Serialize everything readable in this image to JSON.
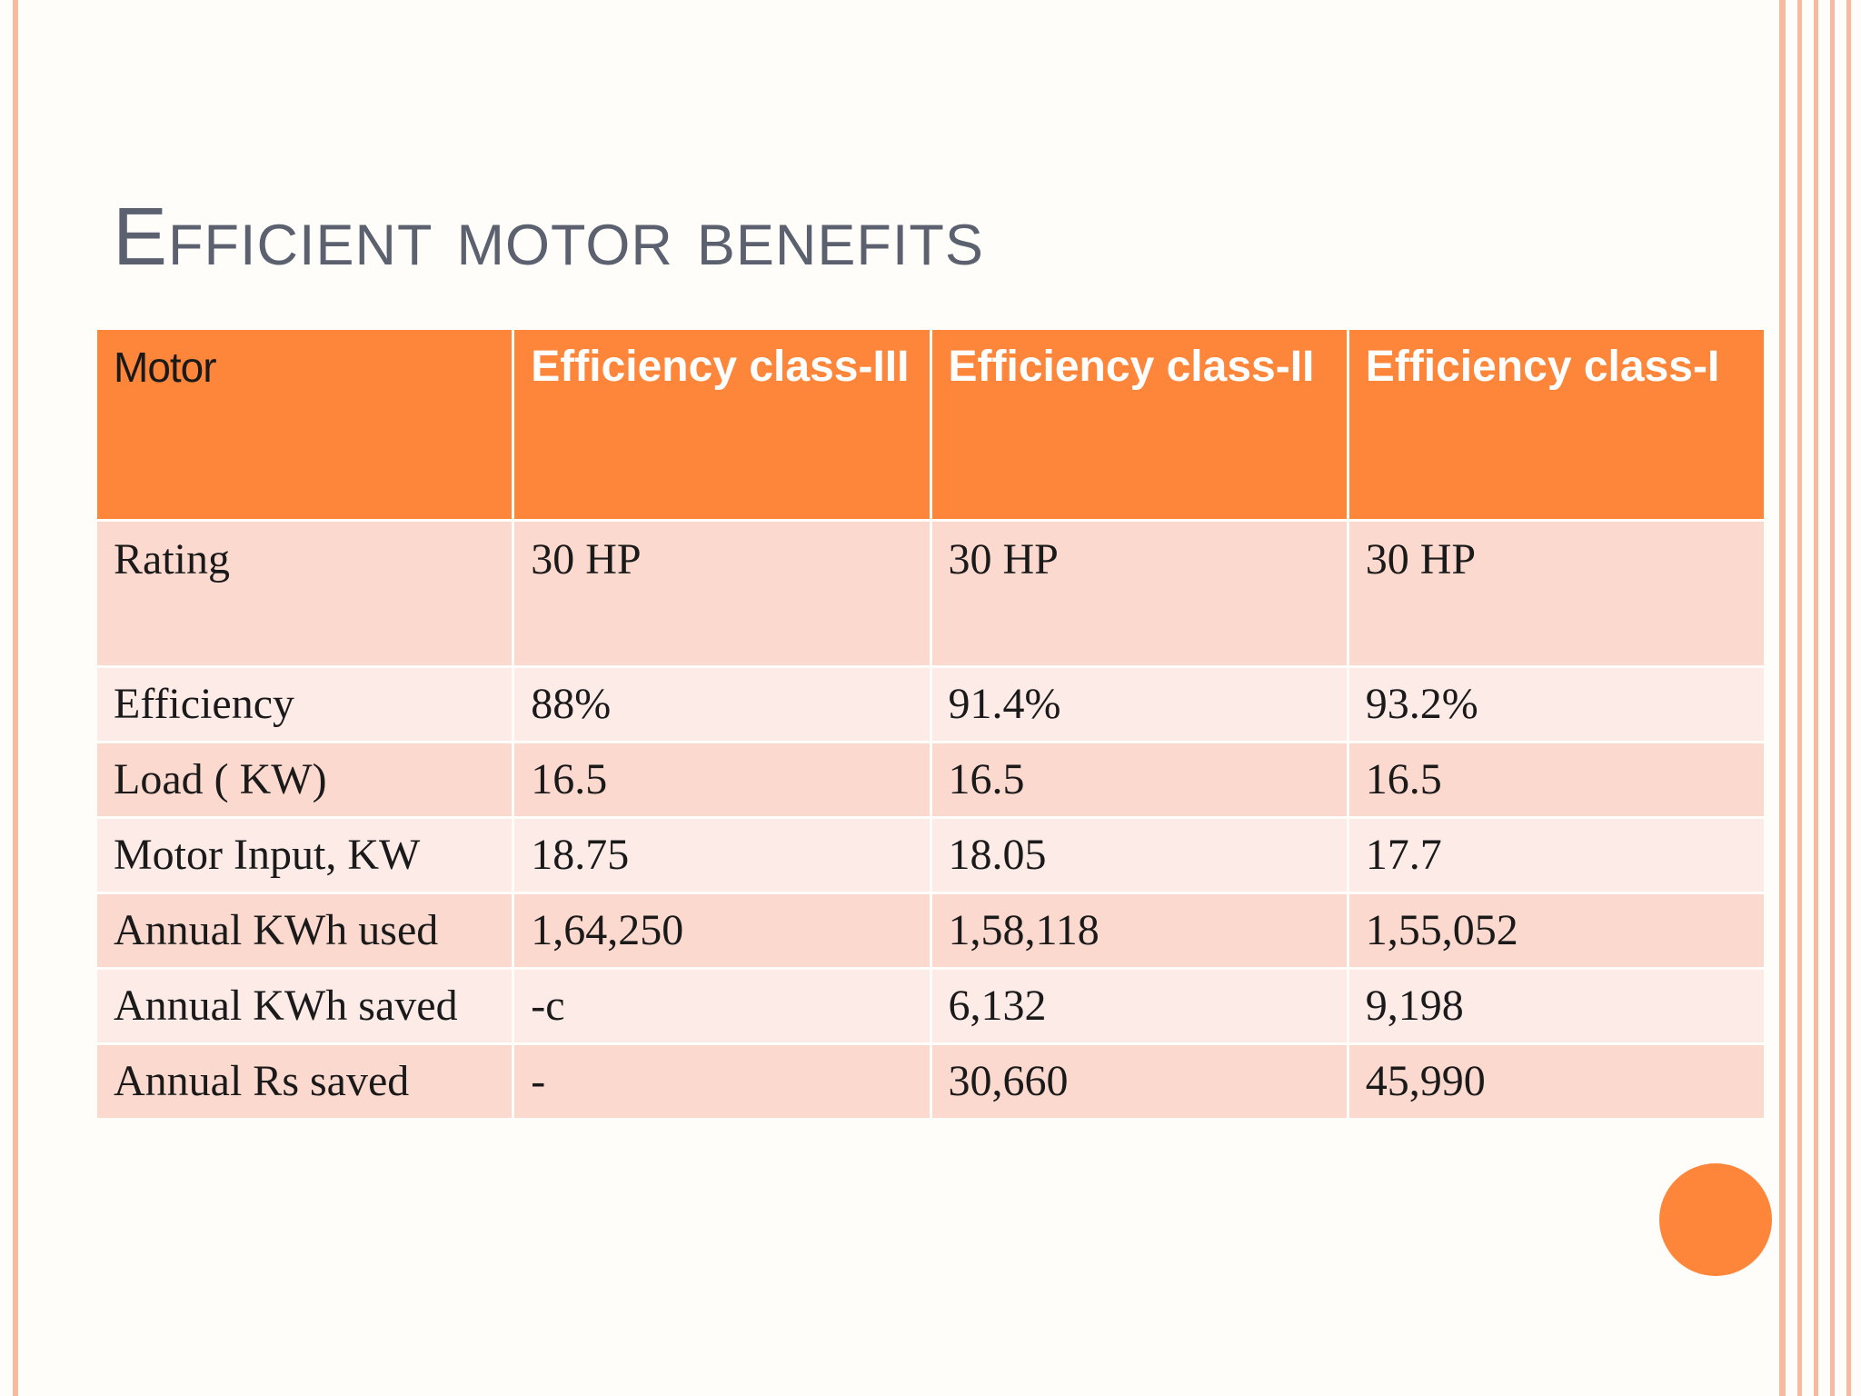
{
  "slide": {
    "title": "Efficient motor benefits"
  },
  "table": {
    "headers": [
      "Motor",
      "Efficiency class-III",
      "Efficiency class-II",
      "Efficiency class-I"
    ],
    "rows": [
      [
        "Rating",
        "30 HP",
        "30 HP",
        "30 HP"
      ],
      [
        "Efficiency",
        "88%",
        "91.4%",
        "93.2%"
      ],
      [
        "Load ( KW)",
        "16.5",
        "16.5",
        "16.5"
      ],
      [
        "Motor Input, KW",
        "18.75",
        "18.05",
        "17.7"
      ],
      [
        "Annual KWh used",
        "1,64,250",
        "1,58,118",
        "1,55,052"
      ],
      [
        "Annual KWh saved",
        "-c",
        "6,132",
        "9,198"
      ],
      [
        "Annual Rs saved",
        "-",
        "30,660",
        "45,990"
      ]
    ]
  },
  "colors": {
    "accent": "#fd863a",
    "row_dark": "#fcd9cf",
    "row_light": "#fdebe8",
    "title": "#5c6170",
    "border_lines": "#f7b9a0"
  }
}
